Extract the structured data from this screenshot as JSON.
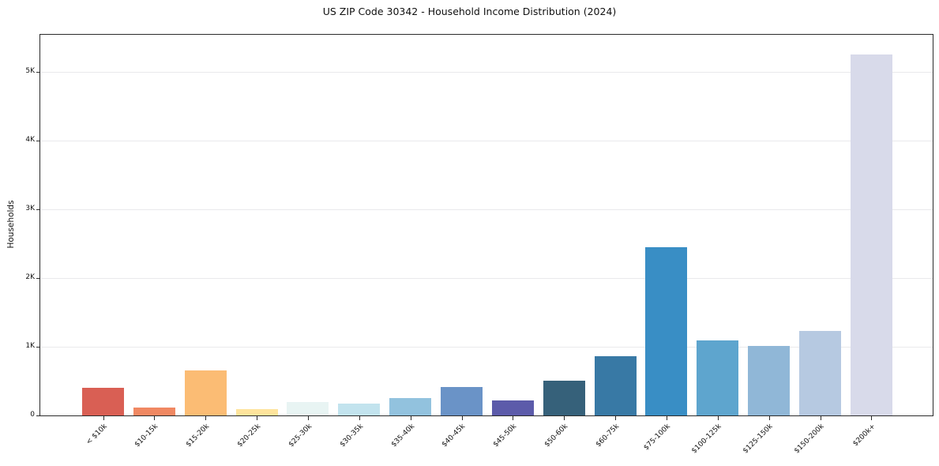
{
  "chart_data": {
    "type": "bar",
    "title": "US ZIP Code 30342 - Household Income Distribution (2024)",
    "xlabel": "",
    "ylabel": "Households",
    "categories": [
      "< $10k",
      "$10-15k",
      "$15-20k",
      "$20-25k",
      "$25-30k",
      "$30-35k",
      "$35-40k",
      "$40-45k",
      "$45-50k",
      "$50-60k",
      "$60-75k",
      "$75-100k",
      "$100-125k",
      "$125-150k",
      "$150-200k",
      "$200k+"
    ],
    "values": [
      400,
      115,
      660,
      90,
      200,
      175,
      255,
      415,
      220,
      510,
      860,
      2450,
      1090,
      1015,
      1230,
      5260
    ],
    "bar_colors": [
      "#d95f54",
      "#f08862",
      "#fbbc74",
      "#fee49c",
      "#e8f4f3",
      "#c2e3ee",
      "#92c2de",
      "#6a93c7",
      "#5c5baa",
      "#36617a",
      "#3879a5",
      "#398ec5",
      "#5ea5ce",
      "#90b7d7",
      "#b6c9e1",
      "#d8daea"
    ],
    "ylim": [
      0,
      5550
    ],
    "ytick_values": [
      0,
      1000,
      2000,
      3000,
      4000,
      5000
    ],
    "ytick_labels": [
      "0",
      "1K",
      "2K",
      "3K",
      "4K",
      "5K"
    ],
    "grid": "horizontal",
    "legend": "none"
  }
}
